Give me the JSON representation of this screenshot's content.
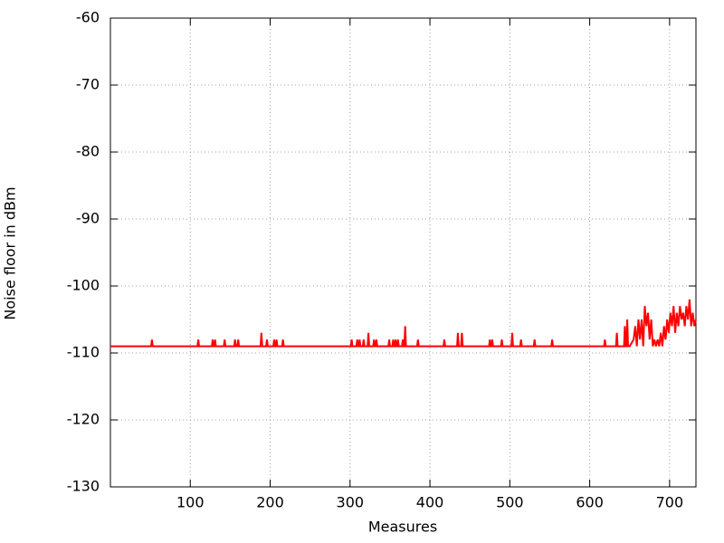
{
  "chart_data": {
    "type": "line",
    "xlabel": "Measures",
    "ylabel": "Noise floor in dBm",
    "color": "#ff0000",
    "grid": true,
    "xlim": [
      0,
      733
    ],
    "ylim": [
      -130,
      -60
    ],
    "xticks": [
      100,
      200,
      300,
      400,
      500,
      600,
      700
    ],
    "yticks": [
      -60,
      -70,
      -80,
      -90,
      -100,
      -110,
      -120,
      -130
    ],
    "x": [
      0,
      51,
      52,
      53,
      109,
      110,
      111,
      127,
      128,
      129,
      130,
      131,
      132,
      142,
      143,
      144,
      155,
      156,
      157,
      159,
      160,
      161,
      188,
      189,
      190,
      195,
      196,
      197,
      204,
      205,
      206,
      207,
      208,
      209,
      215,
      216,
      217,
      301,
      302,
      303,
      308,
      309,
      310,
      311,
      312,
      313,
      316,
      317,
      318,
      322,
      323,
      324,
      329,
      330,
      331,
      332,
      333,
      334,
      348,
      349,
      350,
      353,
      354,
      355,
      356,
      357,
      358,
      359,
      360,
      361,
      365,
      366,
      367,
      368,
      369,
      370,
      384,
      385,
      386,
      417,
      418,
      419,
      434,
      435,
      436,
      439,
      440,
      441,
      474,
      475,
      476,
      477,
      478,
      479,
      489,
      490,
      491,
      502,
      503,
      504,
      513,
      514,
      515,
      530,
      531,
      532,
      552,
      553,
      554,
      618,
      619,
      620,
      633,
      634,
      635,
      643,
      644,
      645,
      646,
      647,
      648,
      650,
      655,
      657,
      659,
      661,
      663,
      665,
      667,
      669,
      671,
      673,
      675,
      677,
      679,
      681,
      683,
      685,
      687,
      689,
      691,
      693,
      695,
      697,
      699,
      701,
      703,
      705,
      707,
      709,
      711,
      713,
      715,
      717,
      719,
      721,
      723,
      725,
      727,
      729,
      731,
      733
    ],
    "values": [
      -109,
      -109,
      -108,
      -109,
      -109,
      -108,
      -109,
      -109,
      -108,
      -109,
      -109,
      -108,
      -109,
      -109,
      -108,
      -109,
      -109,
      -108,
      -109,
      -109,
      -108,
      -109,
      -109,
      -107,
      -109,
      -109,
      -108,
      -109,
      -109,
      -108,
      -109,
      -109,
      -108,
      -109,
      -109,
      -108,
      -109,
      -109,
      -108,
      -109,
      -109,
      -108,
      -109,
      -109,
      -108,
      -109,
      -109,
      -108,
      -109,
      -109,
      -107,
      -109,
      -109,
      -108,
      -109,
      -109,
      -108,
      -109,
      -109,
      -108,
      -109,
      -109,
      -108,
      -109,
      -109,
      -108,
      -109,
      -109,
      -108,
      -109,
      -109,
      -108,
      -109,
      -109,
      -106,
      -109,
      -109,
      -108,
      -109,
      -109,
      -108,
      -109,
      -109,
      -107,
      -109,
      -109,
      -107,
      -109,
      -109,
      -108,
      -109,
      -109,
      -108,
      -109,
      -109,
      -108,
      -109,
      -109,
      -107,
      -109,
      -109,
      -108,
      -109,
      -109,
      -108,
      -109,
      -109,
      -108,
      -109,
      -109,
      -108,
      -109,
      -109,
      -107,
      -109,
      -109,
      -106,
      -109,
      -109,
      -105,
      -109,
      -109,
      -108,
      -106,
      -109,
      -105,
      -108,
      -105,
      -109,
      -103,
      -106,
      -104,
      -108,
      -105,
      -109,
      -108,
      -109,
      -108,
      -109,
      -107,
      -109,
      -106,
      -108,
      -105,
      -107,
      -104,
      -106,
      -103,
      -107,
      -104,
      -106,
      -103,
      -105,
      -104,
      -106,
      -103,
      -105,
      -102,
      -106,
      -104,
      -106,
      -105
    ]
  }
}
